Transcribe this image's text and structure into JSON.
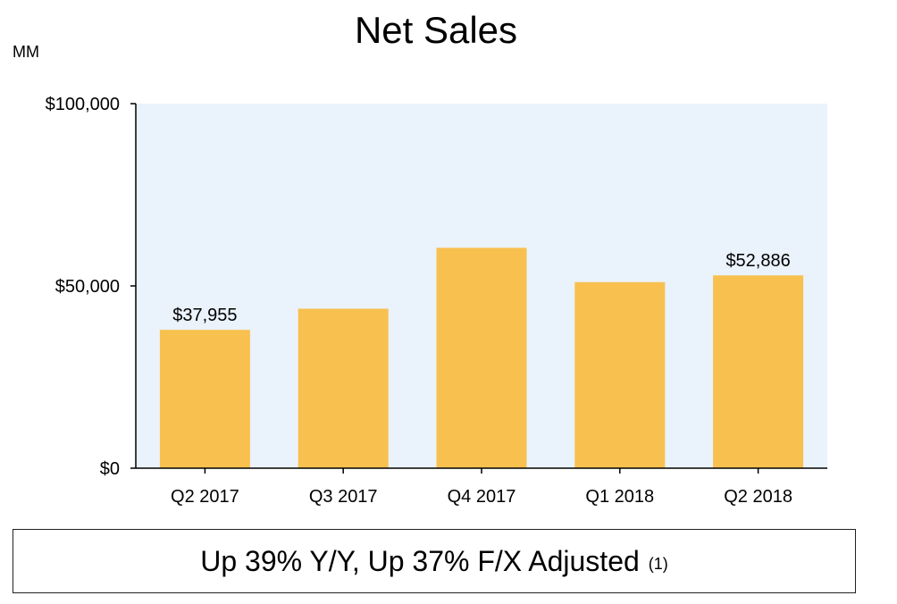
{
  "chart_data": {
    "type": "bar",
    "title": "Net Sales",
    "unit_label": "MM",
    "categories": [
      "Q2 2017",
      "Q3 2017",
      "Q4 2017",
      "Q1 2018",
      "Q2 2018"
    ],
    "values": [
      37955,
      43744,
      60453,
      51042,
      52886
    ],
    "data_labels": [
      "$37,955",
      "",
      "",
      "",
      "$52,886"
    ],
    "ylim": [
      0,
      100000
    ],
    "yticks": [
      0,
      50000,
      100000
    ],
    "ytick_labels": [
      "$0",
      "$50,000",
      "$100,000"
    ],
    "grid": false,
    "colors": {
      "bar": "#F8C04F",
      "plot_background": "#EAF2FB",
      "axis": "#000000"
    }
  },
  "footer": {
    "text": "Up 39% Y/Y, Up 37% F/X Adjusted",
    "note": "(1)"
  }
}
